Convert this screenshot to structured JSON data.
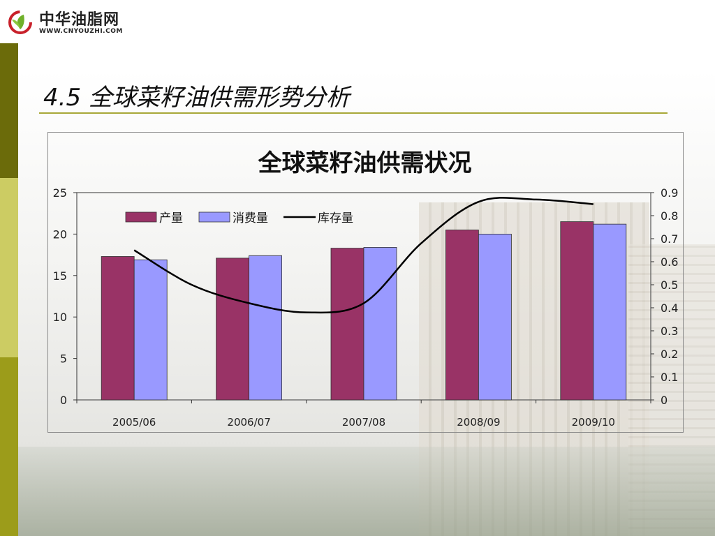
{
  "logo": {
    "name": "中华油脂网",
    "url": "WWW.CNYOUZHI.COM",
    "colors": {
      "leaf_green": "#6fb02a",
      "ring_red": "#c8202a"
    }
  },
  "slide": {
    "title": "4.5 全球菜籽油供需形势分析"
  },
  "colors": {
    "production": "#993366",
    "consumption": "#9999ff",
    "stock_line": "#000000",
    "left_bar_dark": "#6b6b0a",
    "left_bar_light": "#cccc63",
    "rule": "#a8a838"
  },
  "chart_data": {
    "type": "bar",
    "title": "全球菜籽油供需状况",
    "categories": [
      "2005/06",
      "2006/07",
      "2007/08",
      "2008/09",
      "2009/10"
    ],
    "series": [
      {
        "name": "产量",
        "type": "bar",
        "axis": "left",
        "values": [
          17.3,
          17.1,
          18.3,
          20.5,
          21.5
        ]
      },
      {
        "name": "消费量",
        "type": "bar",
        "axis": "left",
        "values": [
          16.9,
          17.4,
          18.4,
          20.0,
          21.2
        ]
      },
      {
        "name": "库存量",
        "type": "line",
        "axis": "right",
        "x": [
          0,
          0.5,
          1,
          1.5,
          2,
          2.5,
          3,
          3.5,
          4
        ],
        "values": [
          0.65,
          0.5,
          0.42,
          0.38,
          0.42,
          0.68,
          0.86,
          0.87,
          0.85
        ]
      }
    ],
    "y_left": {
      "min": 0,
      "max": 25,
      "ticks": [
        "0",
        "5",
        "10",
        "15",
        "20",
        "25"
      ]
    },
    "y_right": {
      "min": 0,
      "max": 0.9,
      "ticks": [
        "0",
        "0.1",
        "0.2",
        "0.3",
        "0.4",
        "0.5",
        "0.6",
        "0.7",
        "0.8",
        "0.9"
      ]
    },
    "legend": {
      "position": "top-left",
      "items": [
        "产量",
        "消费量",
        "库存量"
      ]
    },
    "grid": false
  }
}
